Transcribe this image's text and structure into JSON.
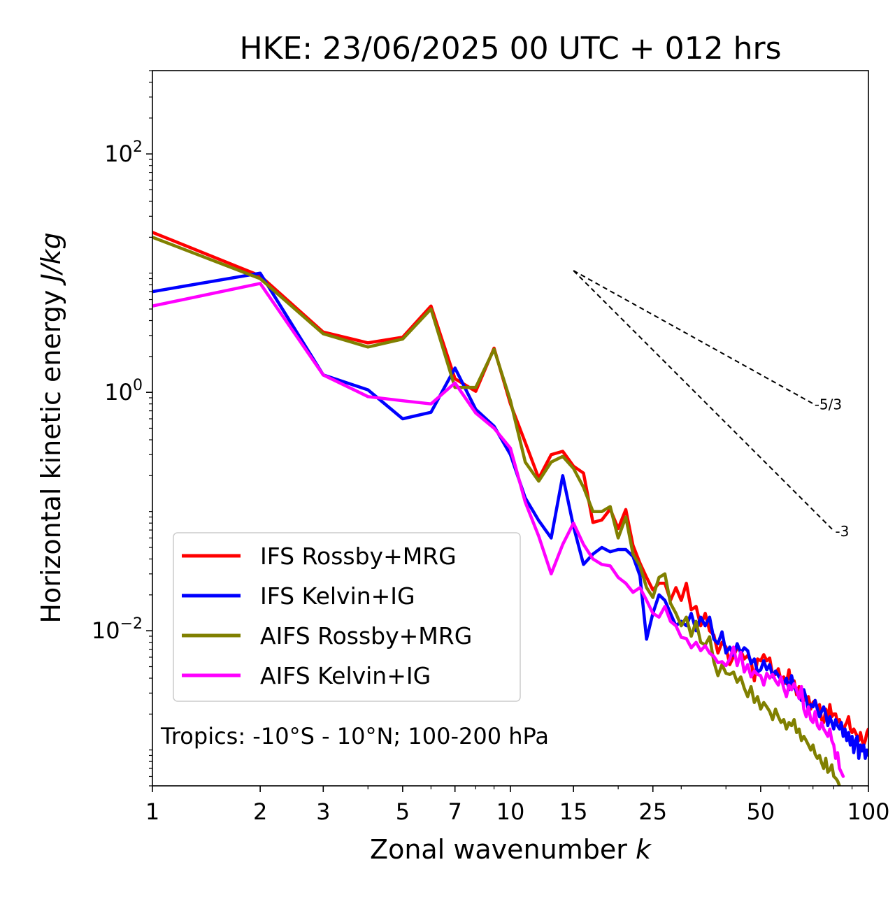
{
  "chart_data": {
    "type": "line",
    "title": "HKE: 23/06/2025 00 UTC + 012 hrs",
    "xlabel": "Zonal wavenumber",
    "xlabel_var": "k",
    "ylabel": "Horizontal kinetic energy",
    "ylabel_unit": "J/kg",
    "xscale": "log",
    "yscale": "log",
    "xlim": [
      1,
      100
    ],
    "ylim": [
      0.0005,
      500
    ],
    "xticks": [
      {
        "v": 1,
        "label": "1"
      },
      {
        "v": 2,
        "label": "2"
      },
      {
        "v": 3,
        "label": "3"
      },
      {
        "v": 5,
        "label": "5"
      },
      {
        "v": 7,
        "label": "7"
      },
      {
        "v": 10,
        "label": "10"
      },
      {
        "v": 15,
        "label": "15"
      },
      {
        "v": 25,
        "label": "25"
      },
      {
        "v": 50,
        "label": "50"
      },
      {
        "v": 100,
        "label": "100"
      }
    ],
    "yticks": [
      {
        "v": 100,
        "base": "10",
        "exp": "2"
      },
      {
        "v": 1,
        "base": "10",
        "exp": "0"
      },
      {
        "v": 0.01,
        "base": "10",
        "exp": "−2"
      }
    ],
    "annotation": "Tropics: -10°S - 10°N; 100-200 hPa",
    "legend_position": "lower-left",
    "reference_slopes": [
      {
        "label": "-5/3",
        "x": [
          15,
          70
        ],
        "y": [
          10.5,
          0.804
        ]
      },
      {
        "label": "-3",
        "x": [
          15,
          80
        ],
        "y": [
          10.5,
          0.069
        ]
      }
    ],
    "series": [
      {
        "name": "IFS Rossby+MRG",
        "color": "#ff0000",
        "x": [
          1,
          2,
          3,
          4,
          5,
          6,
          7,
          8,
          9,
          10,
          11,
          12,
          13,
          14,
          15,
          16,
          17,
          18,
          19,
          20,
          21,
          22,
          23,
          24,
          25,
          26,
          27,
          28,
          29,
          30,
          31,
          32,
          33,
          34,
          35,
          36,
          37,
          38,
          39,
          40,
          41,
          42,
          43,
          44,
          45,
          46,
          47,
          48,
          49,
          50,
          51,
          52,
          53,
          54,
          55,
          56,
          57,
          58,
          59,
          60,
          61,
          62,
          63,
          64,
          65,
          66,
          67,
          68,
          69,
          70,
          71,
          72,
          73,
          74,
          75,
          76,
          77,
          78,
          79,
          80,
          81,
          82,
          83,
          84,
          85,
          86,
          87,
          88,
          89,
          90,
          91,
          92,
          93,
          94,
          95,
          96,
          97,
          98,
          99,
          100
        ],
        "y": [
          22,
          9.5,
          3.2,
          2.6,
          2.9,
          5.3,
          1.3,
          1.02,
          2.35,
          0.8,
          0.38,
          0.19,
          0.3,
          0.32,
          0.24,
          0.21,
          0.081,
          0.085,
          0.105,
          0.072,
          0.104,
          0.052,
          0.037,
          0.028,
          0.022,
          0.025,
          0.025,
          0.018,
          0.023,
          0.018,
          0.025,
          0.015,
          0.016,
          0.011,
          0.014,
          0.01,
          0.0092,
          0.0065,
          0.008,
          0.0073,
          0.0052,
          0.0061,
          0.0072,
          0.0068,
          0.0058,
          0.0062,
          0.0056,
          0.0038,
          0.0058,
          0.0056,
          0.0063,
          0.0056,
          0.0059,
          0.0042,
          0.0043,
          0.0048,
          0.0038,
          0.0041,
          0.0036,
          0.0047,
          0.0033,
          0.0038,
          0.0029,
          0.0034,
          0.0033,
          0.0026,
          0.0027,
          0.0028,
          0.0022,
          0.0025,
          0.0026,
          0.0022,
          0.0024,
          0.0018,
          0.0017,
          0.0022,
          0.0018,
          0.0024,
          0.0019,
          0.002,
          0.002,
          0.0017,
          0.0018,
          0.0016,
          0.0014,
          0.0016,
          0.0017,
          0.0019,
          0.0015,
          0.0014,
          0.0015,
          0.0014,
          0.0013,
          0.0012,
          0.0014,
          0.0012,
          0.0011,
          0.0012,
          0.0014,
          0.0015
        ]
      },
      {
        "name": "IFS Kelvin+IG",
        "color": "#0000ff",
        "x": [
          1,
          2,
          3,
          4,
          5,
          6,
          7,
          8,
          9,
          10,
          11,
          12,
          13,
          14,
          15,
          16,
          17,
          18,
          19,
          20,
          21,
          22,
          23,
          24,
          25,
          26,
          27,
          28,
          29,
          30,
          31,
          32,
          33,
          34,
          35,
          36,
          37,
          38,
          39,
          40,
          41,
          42,
          43,
          44,
          45,
          46,
          47,
          48,
          49,
          50,
          51,
          52,
          53,
          54,
          55,
          56,
          57,
          58,
          59,
          60,
          61,
          62,
          63,
          64,
          65,
          66,
          67,
          68,
          69,
          70,
          71,
          72,
          73,
          74,
          75,
          76,
          77,
          78,
          79,
          80,
          81,
          82,
          83,
          84,
          85,
          86,
          87,
          88,
          89,
          90,
          91,
          92,
          93,
          94,
          95,
          96,
          97,
          98,
          99,
          100
        ],
        "y": [
          7,
          10,
          1.4,
          1.05,
          0.6,
          0.68,
          1.6,
          0.72,
          0.52,
          0.3,
          0.13,
          0.084,
          0.06,
          0.2,
          0.075,
          0.036,
          0.044,
          0.05,
          0.046,
          0.048,
          0.048,
          0.042,
          0.029,
          0.0085,
          0.014,
          0.02,
          0.018,
          0.014,
          0.011,
          0.012,
          0.011,
          0.014,
          0.01,
          0.013,
          0.011,
          0.013,
          0.0085,
          0.0078,
          0.0098,
          0.0065,
          0.0073,
          0.0062,
          0.0078,
          0.0065,
          0.0072,
          0.0068,
          0.0053,
          0.0058,
          0.0045,
          0.0047,
          0.0056,
          0.0047,
          0.0052,
          0.0041,
          0.0046,
          0.0042,
          0.0039,
          0.0036,
          0.004,
          0.0032,
          0.0042,
          0.0034,
          0.0031,
          0.0028,
          0.0026,
          0.0032,
          0.0027,
          0.0021,
          0.0024,
          0.0023,
          0.0026,
          0.0022,
          0.0019,
          0.0021,
          0.0023,
          0.002,
          0.0016,
          0.0019,
          0.0017,
          0.0015,
          0.0018,
          0.0016,
          0.0015,
          0.0017,
          0.0013,
          0.0015,
          0.0012,
          0.0014,
          0.0011,
          0.0013,
          0.00095,
          0.0012,
          0.0013,
          0.00085,
          0.0011,
          0.00098,
          0.0011,
          0.00085,
          0.001,
          0.0009
        ]
      },
      {
        "name": "AIFS Rossby+MRG",
        "color": "#808000",
        "x": [
          1,
          2,
          3,
          4,
          5,
          6,
          7,
          8,
          9,
          10,
          11,
          12,
          13,
          14,
          15,
          16,
          17,
          18,
          19,
          20,
          21,
          22,
          23,
          24,
          25,
          26,
          27,
          28,
          29,
          30,
          31,
          32,
          33,
          34,
          35,
          36,
          37,
          38,
          39,
          40,
          41,
          42,
          43,
          44,
          45,
          46,
          47,
          48,
          49,
          50,
          51,
          52,
          53,
          54,
          55,
          56,
          57,
          58,
          59,
          60,
          61,
          62,
          63,
          64,
          65,
          66,
          67,
          68,
          69,
          70,
          71,
          72,
          73,
          74,
          75,
          76,
          77,
          78,
          79,
          80,
          81,
          82,
          83
        ],
        "y": [
          20,
          9.0,
          3.1,
          2.4,
          2.8,
          5.0,
          1.1,
          1.1,
          2.3,
          0.85,
          0.26,
          0.18,
          0.26,
          0.29,
          0.23,
          0.16,
          0.1,
          0.1,
          0.11,
          0.06,
          0.09,
          0.044,
          0.035,
          0.023,
          0.019,
          0.028,
          0.03,
          0.017,
          0.014,
          0.011,
          0.013,
          0.009,
          0.012,
          0.008,
          0.0076,
          0.0089,
          0.0055,
          0.0042,
          0.0052,
          0.0044,
          0.0043,
          0.0045,
          0.0037,
          0.0041,
          0.0033,
          0.0028,
          0.0034,
          0.0025,
          0.0028,
          0.0022,
          0.0025,
          0.0023,
          0.0021,
          0.0018,
          0.0022,
          0.0019,
          0.0017,
          0.0018,
          0.0015,
          0.0017,
          0.0016,
          0.0018,
          0.0014,
          0.0015,
          0.0012,
          0.0013,
          0.0012,
          0.0011,
          0.001,
          0.0011,
          0.00092,
          0.00085,
          0.0009,
          0.00078,
          0.0007,
          0.00085,
          0.00065,
          0.00068,
          0.00075,
          0.0006,
          0.00058,
          0.00055,
          0.0005
        ]
      },
      {
        "name": "AIFS Kelvin+IG",
        "color": "#ff00ff",
        "x": [
          1,
          2,
          3,
          4,
          5,
          6,
          7,
          8,
          9,
          10,
          11,
          12,
          13,
          14,
          15,
          16,
          17,
          18,
          19,
          20,
          21,
          22,
          23,
          24,
          25,
          26,
          27,
          28,
          29,
          30,
          31,
          32,
          33,
          34,
          35,
          36,
          37,
          38,
          39,
          40,
          41,
          42,
          43,
          44,
          45,
          46,
          47,
          48,
          49,
          50,
          51,
          52,
          53,
          54,
          55,
          56,
          57,
          58,
          59,
          60,
          61,
          62,
          63,
          64,
          65,
          66,
          67,
          68,
          69,
          70,
          71,
          72,
          73,
          74,
          75,
          76,
          77,
          78,
          79,
          80,
          81,
          82,
          83,
          84,
          85
        ],
        "y": [
          5.3,
          8.2,
          1.4,
          0.92,
          0.85,
          0.8,
          1.2,
          0.67,
          0.5,
          0.34,
          0.12,
          0.062,
          0.03,
          0.053,
          0.08,
          0.053,
          0.04,
          0.036,
          0.035,
          0.028,
          0.025,
          0.021,
          0.023,
          0.018,
          0.014,
          0.013,
          0.016,
          0.012,
          0.011,
          0.0088,
          0.0086,
          0.0072,
          0.008,
          0.0068,
          0.0075,
          0.0065,
          0.0061,
          0.0054,
          0.0055,
          0.0051,
          0.0058,
          0.0073,
          0.0051,
          0.0066,
          0.0045,
          0.0052,
          0.0041,
          0.0046,
          0.0043,
          0.0042,
          0.0035,
          0.0044,
          0.004,
          0.0043,
          0.0038,
          0.0035,
          0.0041,
          0.0033,
          0.0028,
          0.0035,
          0.0032,
          0.0036,
          0.0032,
          0.0027,
          0.0034,
          0.0022,
          0.0019,
          0.0023,
          0.0018,
          0.0017,
          0.0021,
          0.0016,
          0.0015,
          0.0017,
          0.0015,
          0.0014,
          0.0013,
          0.0015,
          0.0012,
          0.0011,
          0.00085,
          0.00095,
          0.0007,
          0.00065,
          0.0006
        ]
      }
    ]
  }
}
